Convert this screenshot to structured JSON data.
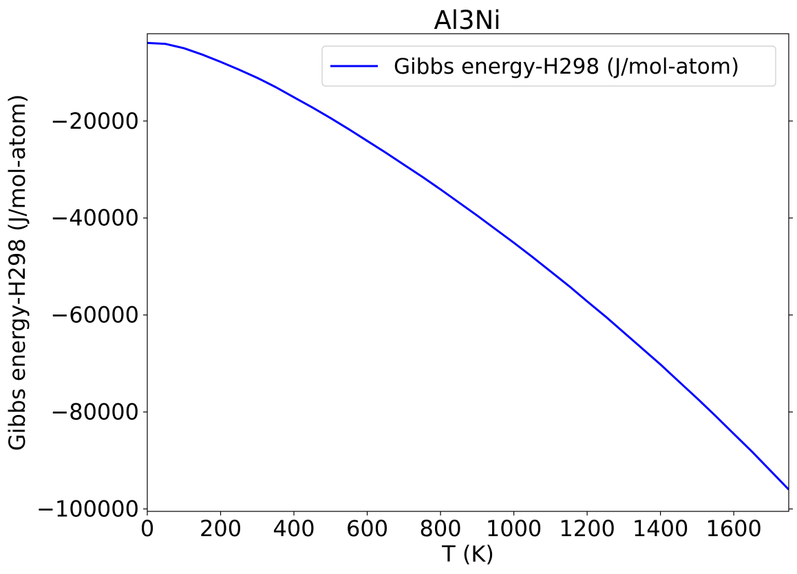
{
  "chart_data": {
    "type": "line",
    "title": "Al3Ni",
    "xlabel": "T (K)",
    "ylabel": "Gibbs energy-H298 (J/mol-atom)",
    "xlim": [
      0,
      1750
    ],
    "ylim": [
      -100500,
      -2000
    ],
    "xticks": [
      0,
      200,
      400,
      600,
      800,
      1000,
      1200,
      1400,
      1600
    ],
    "yticks": [
      -20000,
      -40000,
      -60000,
      -80000,
      -100000
    ],
    "xtick_labels": [
      "0",
      "200",
      "400",
      "600",
      "800",
      "1000",
      "1200",
      "1400",
      "1600"
    ],
    "ytick_labels": [
      "−20000",
      "−40000",
      "−60000",
      "−80000",
      "−100000"
    ],
    "grid": false,
    "legend_position": "top-right",
    "series": [
      {
        "name": "Gibbs energy-H298 (J/mol-atom)",
        "color": "#0000ff",
        "x": [
          0,
          50,
          100,
          150,
          200,
          250,
          300,
          350,
          400,
          450,
          500,
          550,
          600,
          650,
          700,
          750,
          800,
          850,
          900,
          950,
          1000,
          1050,
          1100,
          1150,
          1200,
          1250,
          1300,
          1350,
          1400,
          1450,
          1500,
          1550,
          1600,
          1650,
          1700,
          1750
        ],
        "y": [
          -3900,
          -4100,
          -5000,
          -6300,
          -7800,
          -9400,
          -11100,
          -13000,
          -15100,
          -17200,
          -19400,
          -21700,
          -24100,
          -26500,
          -29000,
          -31500,
          -34100,
          -36800,
          -39500,
          -42300,
          -45100,
          -48000,
          -51000,
          -54000,
          -57200,
          -60300,
          -63600,
          -66900,
          -70200,
          -73700,
          -77200,
          -80800,
          -84500,
          -88200,
          -92100,
          -96000
        ]
      }
    ]
  }
}
